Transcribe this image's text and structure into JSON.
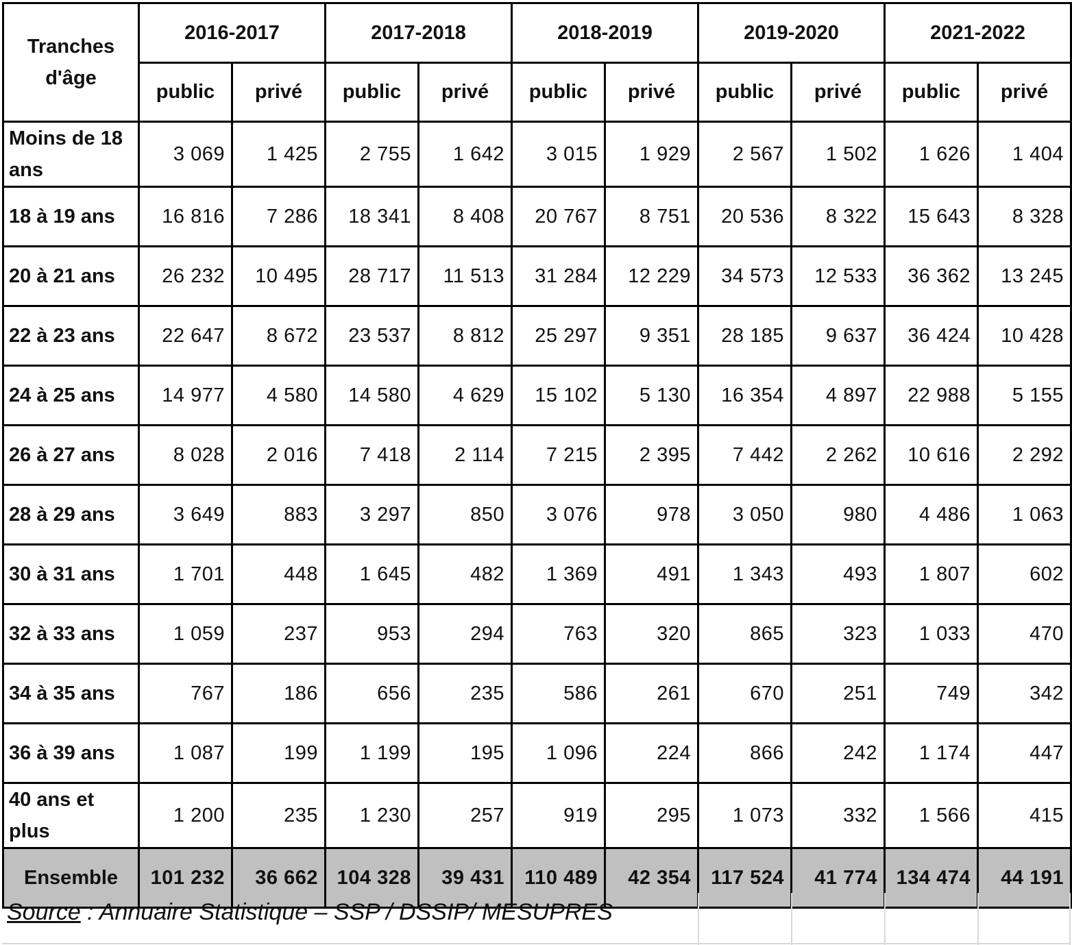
{
  "table": {
    "age_header": "Tranches d'âge",
    "years": [
      "2016-2017",
      "2017-2018",
      "2018-2019",
      "2019-2020",
      "2021-2022"
    ],
    "sub_headers": [
      "public",
      "privé"
    ],
    "rows": [
      {
        "label": "Moins de 18 ans",
        "values": [
          "3 069",
          "1 425",
          "2 755",
          "1 642",
          "3 015",
          "1 929",
          "2 567",
          "1 502",
          "1 626",
          "1 404"
        ]
      },
      {
        "label": "18 à 19 ans",
        "values": [
          "16 816",
          "7 286",
          "18 341",
          "8 408",
          "20 767",
          "8 751",
          "20 536",
          "8 322",
          "15 643",
          "8 328"
        ]
      },
      {
        "label": "20 à 21 ans",
        "values": [
          "26 232",
          "10 495",
          "28 717",
          "11 513",
          "31 284",
          "12 229",
          "34 573",
          "12 533",
          "36 362",
          "13 245"
        ]
      },
      {
        "label": "22 à 23 ans",
        "values": [
          "22 647",
          "8 672",
          "23 537",
          "8 812",
          "25 297",
          "9 351",
          "28 185",
          "9 637",
          "36 424",
          "10 428"
        ]
      },
      {
        "label": "24 à 25 ans",
        "values": [
          "14 977",
          "4 580",
          "14 580",
          "4 629",
          "15 102",
          "5 130",
          "16 354",
          "4 897",
          "22 988",
          "5 155"
        ]
      },
      {
        "label": "26 à 27 ans",
        "values": [
          "8 028",
          "2 016",
          "7 418",
          "2 114",
          "7 215",
          "2 395",
          "7 442",
          "2 262",
          "10 616",
          "2 292"
        ]
      },
      {
        "label": "28 à 29 ans",
        "values": [
          "3 649",
          "883",
          "3 297",
          "850",
          "3 076",
          "978",
          "3 050",
          "980",
          "4 486",
          "1 063"
        ]
      },
      {
        "label": "30 à 31 ans",
        "values": [
          "1 701",
          "448",
          "1 645",
          "482",
          "1 369",
          "491",
          "1 343",
          "493",
          "1 807",
          "602"
        ]
      },
      {
        "label": "32 à 33 ans",
        "values": [
          "1 059",
          "237",
          "953",
          "294",
          "763",
          "320",
          "865",
          "323",
          "1 033",
          "470"
        ]
      },
      {
        "label": "34 à 35 ans",
        "values": [
          "767",
          "186",
          "656",
          "235",
          "586",
          "261",
          "670",
          "251",
          "749",
          "342"
        ]
      },
      {
        "label": "36 à 39 ans",
        "values": [
          "1 087",
          "199",
          "1 199",
          "195",
          "1 096",
          "224",
          "866",
          "242",
          "1 174",
          "447"
        ]
      },
      {
        "label": "40 ans et plus",
        "values": [
          "1 200",
          "235",
          "1 230",
          "257",
          "919",
          "295",
          "1 073",
          "332",
          "1 566",
          "415"
        ]
      }
    ],
    "total": {
      "label": "Ensemble",
      "values": [
        "101 232",
        "36 662",
        "104 328",
        "39 431",
        "110 489",
        "42 354",
        "117 524",
        "41 774",
        "134 474",
        "44 191"
      ]
    }
  },
  "source": {
    "label": "Source",
    "text": " : Annuaire Statistique – SSP / DSSIP/ MESUPRES"
  },
  "colors": {
    "total_row_bg": "#c0c0c0",
    "border": "#000000"
  }
}
